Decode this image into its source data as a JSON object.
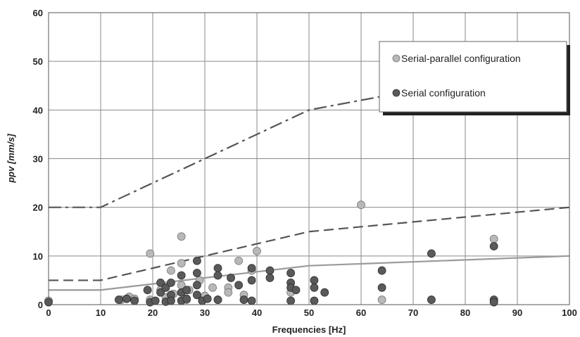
{
  "chart_data": {
    "type": "scatter",
    "xlabel": "Frequencies [Hz]",
    "ylabel": "ppv [mm/s]",
    "xlim": [
      0,
      100
    ],
    "ylim": [
      0,
      60
    ],
    "x_ticks": [
      0,
      10,
      20,
      30,
      40,
      50,
      60,
      70,
      80,
      90,
      100
    ],
    "y_ticks": [
      0,
      10,
      20,
      30,
      40,
      50,
      60
    ],
    "grid": true,
    "legend_position": "top-right",
    "series": [
      {
        "name": "Serial-parallel configuration",
        "marker_color": "#b8b8b8",
        "points": [
          [
            0,
            0.8
          ],
          [
            14,
            1.0
          ],
          [
            15.5,
            1.6
          ],
          [
            16.5,
            1.2
          ],
          [
            19.5,
            10.5
          ],
          [
            19.5,
            1.0
          ],
          [
            21.5,
            3.0
          ],
          [
            22.5,
            1.5
          ],
          [
            23.5,
            7.0
          ],
          [
            24,
            2.2
          ],
          [
            25.5,
            14.0
          ],
          [
            25.5,
            8.5
          ],
          [
            25.5,
            4.0
          ],
          [
            26.5,
            1.0
          ],
          [
            27,
            3.0
          ],
          [
            28.5,
            2.0
          ],
          [
            29,
            5.0
          ],
          [
            30,
            1.8
          ],
          [
            31.5,
            3.5
          ],
          [
            32.5,
            1.0
          ],
          [
            34.5,
            3.5
          ],
          [
            34.5,
            2.5
          ],
          [
            36.5,
            9.0
          ],
          [
            37.5,
            2.0
          ],
          [
            39,
            7.0
          ],
          [
            40,
            11.0
          ],
          [
            46.5,
            2.5
          ],
          [
            60,
            20.5
          ],
          [
            64,
            1.0
          ],
          [
            85.5,
            13.5
          ]
        ]
      },
      {
        "name": "Serial configuration",
        "marker_color": "#5a5a5a",
        "points": [
          [
            0,
            0.5
          ],
          [
            13.5,
            1.0
          ],
          [
            15,
            1.2
          ],
          [
            16.5,
            0.8
          ],
          [
            19,
            3.0
          ],
          [
            19.5,
            0.5
          ],
          [
            20.5,
            0.8
          ],
          [
            21.5,
            4.5
          ],
          [
            21.5,
            2.5
          ],
          [
            22.5,
            0.6
          ],
          [
            22.5,
            3.5
          ],
          [
            23.5,
            4.5
          ],
          [
            23.5,
            2.0
          ],
          [
            23.5,
            0.8
          ],
          [
            25.5,
            6.0
          ],
          [
            25.5,
            2.5
          ],
          [
            25.5,
            0.8
          ],
          [
            26.5,
            3.0
          ],
          [
            26.5,
            1.2
          ],
          [
            28.5,
            9.0
          ],
          [
            28.5,
            6.5
          ],
          [
            28.5,
            4.0
          ],
          [
            28.5,
            2.0
          ],
          [
            29.5,
            0.8
          ],
          [
            30.5,
            1.2
          ],
          [
            32.5,
            7.5
          ],
          [
            32.5,
            6.0
          ],
          [
            32.5,
            1.0
          ],
          [
            35,
            5.5
          ],
          [
            36.5,
            4.0
          ],
          [
            37.5,
            1.0
          ],
          [
            39,
            7.5
          ],
          [
            39,
            5.0
          ],
          [
            39,
            0.8
          ],
          [
            42.5,
            7.0
          ],
          [
            42.5,
            5.5
          ],
          [
            46.5,
            6.5
          ],
          [
            46.5,
            4.5
          ],
          [
            46.5,
            3.5
          ],
          [
            46.5,
            0.8
          ],
          [
            47.5,
            3.0
          ],
          [
            51,
            5.0
          ],
          [
            51,
            3.5
          ],
          [
            51,
            0.8
          ],
          [
            53,
            2.5
          ],
          [
            64,
            7.0
          ],
          [
            64,
            3.5
          ],
          [
            73.5,
            10.5
          ],
          [
            73.5,
            1.0
          ],
          [
            85.5,
            12.0
          ],
          [
            85.5,
            1.0
          ],
          [
            85.5,
            0.5
          ]
        ]
      }
    ],
    "reference_lines": [
      {
        "style": "solid",
        "color": "#9a9a9a",
        "points": [
          [
            0,
            3
          ],
          [
            10,
            3
          ],
          [
            50,
            8
          ],
          [
            100,
            10
          ]
        ]
      },
      {
        "style": "dashed",
        "color": "#555555",
        "points": [
          [
            0,
            5
          ],
          [
            10,
            5
          ],
          [
            50,
            15
          ],
          [
            100,
            20
          ]
        ]
      },
      {
        "style": "dashdot",
        "color": "#555555",
        "points": [
          [
            0,
            20
          ],
          [
            10,
            20
          ],
          [
            50,
            40
          ],
          [
            100,
            50
          ]
        ]
      }
    ]
  }
}
